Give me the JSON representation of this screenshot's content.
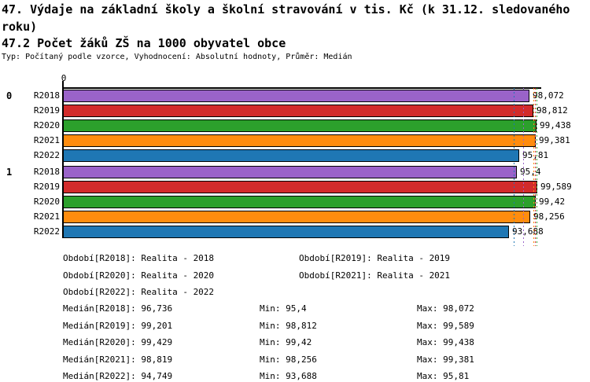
{
  "header": {
    "title_line1": "47. Výdaje na základní školy a školní stravování v tis. Kč (k 31.12. sledovaného",
    "title_line2": "roku)",
    "subtitle": "47.2 Počet žáků ZŠ na 1000 obyvatel obce",
    "type_line": "Typ: Počítaný podle vzorce, Vyhodnocení: Absolutní hodnoty, Průměr: Medián"
  },
  "chart_data": {
    "type": "bar",
    "orientation": "horizontal",
    "title": "47. Výdaje na základní školy a školní stravování v tis. Kč (k 31.12. sledovaného roku)",
    "subtitle": "47.2 Počet žáků ZŠ na 1000 obyvatel obce",
    "x_axis": {
      "origin_label": "0",
      "min": 0,
      "max": 100,
      "grid": false
    },
    "categories": [
      "0",
      "1"
    ],
    "series": [
      {
        "name": "R2018",
        "color": "#9a63c9",
        "values": [
          98.072,
          95.4
        ],
        "value_labels": [
          "98,072",
          "95,4"
        ],
        "median": 96.736
      },
      {
        "name": "R2019",
        "color": "#d22b2b",
        "values": [
          98.812,
          99.589
        ],
        "value_labels": [
          "98,812",
          "99,589"
        ],
        "median": 99.201
      },
      {
        "name": "R2020",
        "color": "#2ca02c",
        "values": [
          99.438,
          99.42
        ],
        "value_labels": [
          "99,438",
          "99,42"
        ],
        "median": 99.429
      },
      {
        "name": "R2021",
        "color": "#ff8c0e",
        "values": [
          99.381,
          98.256
        ],
        "value_labels": [
          "99,381",
          "98,256"
        ],
        "median": 98.819
      },
      {
        "name": "R2022",
        "color": "#1f77b4",
        "values": [
          95.81,
          93.688
        ],
        "value_labels": [
          "95,81",
          "93,688"
        ],
        "median": 94.749
      }
    ],
    "median_lines_on_top": true
  },
  "legend": {
    "items": [
      "Období[R2018]: Realita - 2018",
      "Období[R2019]: Realita - 2019",
      "Období[R2020]: Realita - 2020",
      "Období[R2021]: Realita - 2021",
      "Období[R2022]: Realita - 2022"
    ]
  },
  "stats": {
    "rows": [
      {
        "median": "Medián[R2018]: 96,736",
        "min": "Min: 95,4",
        "max": "Max: 98,072"
      },
      {
        "median": "Medián[R2019]: 99,201",
        "min": "Min: 98,812",
        "max": "Max: 99,589"
      },
      {
        "median": "Medián[R2020]: 99,429",
        "min": "Min: 99,42",
        "max": "Max: 99,438"
      },
      {
        "median": "Medián[R2021]: 98,819",
        "min": "Min: 98,256",
        "max": "Max: 99,381"
      },
      {
        "median": "Medián[R2022]: 94,749",
        "min": "Min: 93,688",
        "max": "Max: 95,81"
      }
    ]
  },
  "colors": {
    "background": "#ffffff",
    "text": "#000000",
    "axis": "#000000"
  }
}
